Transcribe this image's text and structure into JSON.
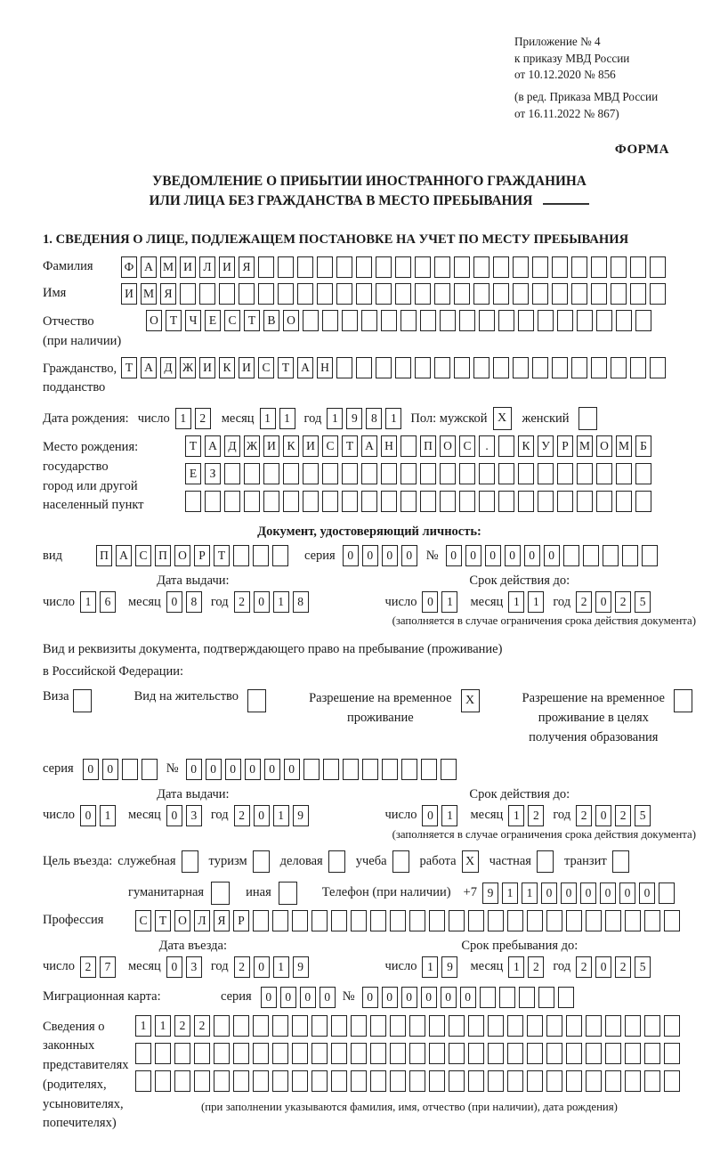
{
  "meta": {
    "appendix": [
      "Приложение № 4",
      "к приказу МВД России",
      "от 10.12.2020 № 856"
    ],
    "edition": [
      "(в ред. Приказа МВД России",
      "от 16.11.2022 № 867)"
    ],
    "form_label": "ФОРМА"
  },
  "title": {
    "line1": "УВЕДОМЛЕНИЕ О ПРИБЫТИИ ИНОСТРАННОГО ГРАЖДАНИНА",
    "line2": "ИЛИ ЛИЦА БЕЗ ГРАЖДАНСТВА В МЕСТО ПРЕБЫВАНИЯ"
  },
  "section1_heading": "1. СВЕДЕНИЯ О ЛИЦЕ, ПОДЛЕЖАЩЕМ ПОСТАНОВКЕ НА УЧЕТ ПО МЕСТУ ПРЕБЫВАНИЯ",
  "surname": {
    "label": "Фамилия",
    "cells": [
      "Ф",
      "А",
      "М",
      "И",
      "Л",
      "И",
      "Я"
    ]
  },
  "firstname": {
    "label": "Имя",
    "cells": [
      "И",
      "М",
      "Я"
    ]
  },
  "patronymic": {
    "label": "Отчество",
    "sublabel": "(при наличии)",
    "cells": [
      "О",
      "Т",
      "Ч",
      "Е",
      "С",
      "Т",
      "В",
      "О"
    ]
  },
  "citizenship": {
    "label": "Гражданство,",
    "sublabel": "подданство",
    "cells": [
      "Т",
      "А",
      "Д",
      "Ж",
      "И",
      "К",
      "И",
      "С",
      "Т",
      "А",
      "Н"
    ]
  },
  "birth_date": {
    "label": "Дата рождения:",
    "day_label": "число",
    "day": [
      "1",
      "2"
    ],
    "month_label": "месяц",
    "month": [
      "1",
      "1"
    ],
    "year_label": "год",
    "year": [
      "1",
      "9",
      "8",
      "1"
    ]
  },
  "gender": {
    "label": "Пол: мужской",
    "male_value": "X",
    "female_label": "женский",
    "female_value": ""
  },
  "birth_place": {
    "labels": [
      "Место рождения:",
      "государство",
      "город или другой",
      "населенный пункт"
    ],
    "row1": [
      "Т",
      "А",
      "Д",
      "Ж",
      "И",
      "К",
      "И",
      "С",
      "Т",
      "А",
      "Н",
      "",
      "П",
      "О",
      "С",
      ".",
      "",
      "К",
      "У",
      "Р",
      "М",
      "О",
      "М",
      "Б"
    ],
    "row2": [
      "Е",
      "З"
    ],
    "row3": []
  },
  "identity_doc": {
    "heading": "Документ, удостоверяющий личность:",
    "kind_label": "вид",
    "kind": [
      "П",
      "А",
      "С",
      "П",
      "О",
      "Р",
      "Т"
    ],
    "series_label": "серия",
    "series": [
      "0",
      "0",
      "0",
      "0"
    ],
    "number_label": "№",
    "number": [
      "0",
      "0",
      "0",
      "0",
      "0",
      "0"
    ],
    "issue_heading": "Дата выдачи:",
    "issue": {
      "day_label": "число",
      "day": [
        "1",
        "6"
      ],
      "month_label": "месяц",
      "month": [
        "0",
        "8"
      ],
      "year_label": "год",
      "year": [
        "2",
        "0",
        "1",
        "8"
      ]
    },
    "expiry_heading": "Срок действия до:",
    "expiry": {
      "day_label": "число",
      "day": [
        "0",
        "1"
      ],
      "month_label": "месяц",
      "month": [
        "1",
        "1"
      ],
      "year_label": "год",
      "year": [
        "2",
        "0",
        "2",
        "5"
      ]
    },
    "note": "(заполняется в случае ограничения срока действия документа)"
  },
  "residence_doc": {
    "intro1": "Вид и реквизиты документа, подтверждающего право на пребывание (проживание)",
    "intro2": "в Российской Федерации:",
    "opt_visa": {
      "label": "Виза",
      "value": ""
    },
    "opt_residence": {
      "label": "Вид на жительство",
      "value": ""
    },
    "opt_temp": {
      "line1": "Разрешение на временное",
      "line2": "проживание",
      "value": "X"
    },
    "opt_edu": {
      "line1": "Разрешение на временное",
      "line2": "проживание в целях",
      "line3": "получения образования",
      "value": ""
    },
    "series_label": "серия",
    "series": [
      "0",
      "0"
    ],
    "number_label": "№",
    "number": [
      "0",
      "0",
      "0",
      "0",
      "0",
      "0"
    ],
    "issue_heading": "Дата выдачи:",
    "issue": {
      "day_label": "число",
      "day": [
        "0",
        "1"
      ],
      "month_label": "месяц",
      "month": [
        "0",
        "3"
      ],
      "year_label": "год",
      "year": [
        "2",
        "0",
        "1",
        "9"
      ]
    },
    "expiry_heading": "Срок действия до:",
    "expiry": {
      "day_label": "число",
      "day": [
        "0",
        "1"
      ],
      "month_label": "месяц",
      "month": [
        "1",
        "2"
      ],
      "year_label": "год",
      "year": [
        "2",
        "0",
        "2",
        "5"
      ]
    },
    "note": "(заполняется в случае ограничения срока действия документа)"
  },
  "visit": {
    "label": "Цель въезда:",
    "options": [
      {
        "label": "служебная",
        "value": ""
      },
      {
        "label": "туризм",
        "value": ""
      },
      {
        "label": "деловая",
        "value": ""
      },
      {
        "label": "учеба",
        "value": ""
      },
      {
        "label": "работа",
        "value": "X"
      },
      {
        "label": "частная",
        "value": ""
      },
      {
        "label": "транзит",
        "value": ""
      },
      {
        "label": "гуманитарная",
        "value": ""
      },
      {
        "label": "иная",
        "value": ""
      }
    ],
    "phone_label": "Телефон (при наличии)",
    "phone_prefix": "+7",
    "phone": [
      "9",
      "1",
      "1",
      "0",
      "0",
      "0",
      "0",
      "0",
      "0"
    ]
  },
  "profession": {
    "label": "Профессия",
    "cells": [
      "С",
      "Т",
      "О",
      "Л",
      "Я",
      "Р"
    ]
  },
  "entry": {
    "date_heading": "Дата въезда:",
    "date": {
      "day_label": "число",
      "day": [
        "2",
        "7"
      ],
      "month_label": "месяц",
      "month": [
        "0",
        "3"
      ],
      "year_label": "год",
      "year": [
        "2",
        "0",
        "1",
        "9"
      ]
    },
    "until_heading": "Срок пребывания до:",
    "until": {
      "day_label": "число",
      "day": [
        "1",
        "9"
      ],
      "month_label": "месяц",
      "month": [
        "1",
        "2"
      ],
      "year_label": "год",
      "year": [
        "2",
        "0",
        "2",
        "5"
      ]
    }
  },
  "migration_card": {
    "label": "Миграционная карта:",
    "series_label": "серия",
    "series": [
      "0",
      "0",
      "0",
      "0"
    ],
    "number_label": "№",
    "number": [
      "0",
      "0",
      "0",
      "0",
      "0",
      "0"
    ]
  },
  "representatives": {
    "labels": [
      "Сведения о",
      "законных",
      "представителях",
      "(родителях,",
      "усыновителях,",
      "попечителях)"
    ],
    "row1": [
      "1",
      "1",
      "2",
      "2"
    ],
    "row2": [],
    "row3": [],
    "note": "(при заполнении указываются фамилия, имя, отчество (при наличии), дата рождения)"
  }
}
